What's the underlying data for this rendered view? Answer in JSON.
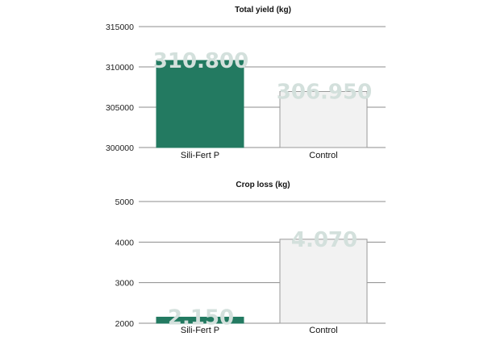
{
  "colors": {
    "primary_bar": "#237a61",
    "control_bar": "#f2f2f2",
    "control_stroke": "#9a9a9a",
    "grid": "#8c8c8c",
    "data_label": "#d3e0dc"
  },
  "chart_data": [
    {
      "type": "bar",
      "title": "Total yield (kg)",
      "categories": [
        "Sili-Fert P",
        "Control"
      ],
      "values": [
        310800,
        306950
      ],
      "value_labels": [
        "310.800",
        "306.950"
      ],
      "ylim": [
        300000,
        315000
      ],
      "yticks": [
        300000,
        305000,
        310000,
        315000
      ],
      "ytick_labels": [
        "300000",
        "305000",
        "310000",
        "315000"
      ],
      "xlabel": "",
      "ylabel": "",
      "grid": true
    },
    {
      "type": "bar",
      "title": "Crop loss (kg)",
      "categories": [
        "Sili-Fert P",
        "Control"
      ],
      "values": [
        2150,
        4070
      ],
      "value_labels": [
        "2.150",
        "4.070"
      ],
      "ylim": [
        2000,
        5000
      ],
      "yticks": [
        2000,
        3000,
        4000,
        5000
      ],
      "ytick_labels": [
        "2000",
        "3000",
        "4000",
        "5000"
      ],
      "xlabel": "",
      "ylabel": "",
      "grid": true
    }
  ]
}
